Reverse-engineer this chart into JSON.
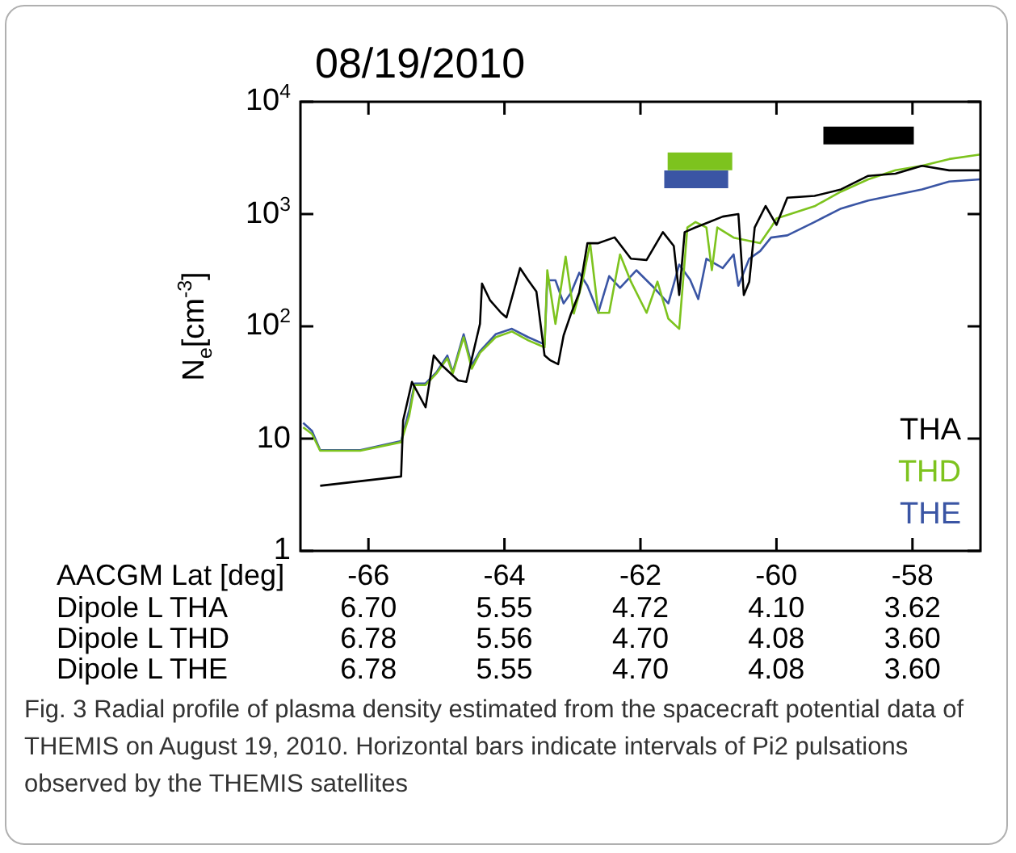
{
  "chart_data": {
    "type": "line",
    "title": "08/19/2010",
    "xlabel": "AACGM Lat [deg]",
    "ylabel": "N$_{e}$[cm$^{-3}$]",
    "xlim": [
      -67,
      -57
    ],
    "xticks": [
      -66,
      -64,
      -62,
      -60,
      -58
    ],
    "ylim": [
      1,
      10000
    ],
    "yticks": [
      {
        "value": 1,
        "label": "1"
      },
      {
        "value": 10,
        "label": "10"
      },
      {
        "value": 100,
        "label": "10$^{2}$"
      },
      {
        "value": 1000,
        "label": "10$^{3}$"
      },
      {
        "value": 10000,
        "label": "10$^{4}$"
      }
    ],
    "log": "y",
    "grid": false,
    "legend": "bottom right",
    "marker": "none",
    "series": [
      {
        "name": "THA",
        "color": "#000000",
        "x": [
          -66.71,
          -65.52,
          -65.49,
          -65.36,
          -65.16,
          -65.04,
          -64.92,
          -64.68,
          -64.56,
          -64.36,
          -64.33,
          -64.21,
          -64.05,
          -63.97,
          -63.77,
          -63.65,
          -63.53,
          -63.41,
          -63.33,
          -63.21,
          -63.13,
          -63.02,
          -62.9,
          -62.78,
          -62.62,
          -62.38,
          -62.14,
          -61.91,
          -61.67,
          -61.51,
          -61.43,
          -61.35,
          -61.19,
          -61.03,
          -60.79,
          -60.56,
          -60.48,
          -60.4,
          -60.32,
          -60.16,
          -60,
          -59.84,
          -59.44,
          -59.05,
          -58.65,
          -58.25,
          -57.86,
          -57.46,
          -57
        ],
        "values": [
          3.8,
          4.6,
          14.5,
          32,
          19,
          55,
          45,
          33,
          32,
          105,
          240,
          170,
          132,
          120,
          330,
          257,
          204,
          55,
          50,
          46,
          83,
          130,
          200,
          550,
          550,
          620,
          400,
          390,
          690,
          520,
          190,
          690,
          760,
          830,
          950,
          1000,
          190,
          250,
          760,
          1180,
          800,
          1400,
          1450,
          1660,
          2190,
          2290,
          2690,
          2450,
          2450
        ]
      },
      {
        "name": "THD",
        "color": "#7dc31e",
        "x": [
          -66.96,
          -66.83,
          -66.71,
          -66.12,
          -65.52,
          -65.4,
          -65.32,
          -65.16,
          -65,
          -64.84,
          -64.76,
          -64.6,
          -64.48,
          -64.36,
          -64.13,
          -63.89,
          -63.65,
          -63.41,
          -63.37,
          -63.25,
          -63.1,
          -62.98,
          -62.86,
          -62.74,
          -62.62,
          -62.46,
          -62.3,
          -62.14,
          -61.91,
          -61.75,
          -61.59,
          -61.43,
          -61.31,
          -61.19,
          -61.03,
          -60.95,
          -60.87,
          -60.63,
          -60.24,
          -60.08,
          -60,
          -59.44,
          -59.05,
          -58.65,
          -58.25,
          -57.86,
          -57.46,
          -57
        ],
        "values": [
          12.6,
          11,
          7.8,
          7.8,
          9.3,
          16,
          30,
          30,
          38,
          52,
          38,
          80,
          42,
          58,
          80,
          90,
          75,
          65,
          316,
          105,
          417,
          130,
          240,
          550,
          132,
          132,
          437,
          250,
          132,
          250,
          117,
          95,
          760,
          850,
          760,
          316,
          760,
          617,
          550,
          760,
          912,
          1175,
          1585,
          2040,
          2455,
          2690,
          3090,
          3390
        ]
      },
      {
        "name": "THE",
        "color": "#3a55a4",
        "x": [
          -66.96,
          -66.83,
          -66.71,
          -66.12,
          -65.52,
          -65.4,
          -65.32,
          -65.16,
          -65,
          -64.84,
          -64.76,
          -64.6,
          -64.48,
          -64.36,
          -64.13,
          -63.89,
          -63.65,
          -63.41,
          -63.37,
          -63.25,
          -63.13,
          -63.02,
          -62.9,
          -62.78,
          -62.62,
          -62.46,
          -62.3,
          -62.06,
          -61.83,
          -61.59,
          -61.43,
          -61.27,
          -61.15,
          -61.03,
          -60.79,
          -60.63,
          -60.56,
          -60.4,
          -60.24,
          -60.08,
          -59.84,
          -59.44,
          -59.05,
          -58.65,
          -58.25,
          -57.86,
          -57.46,
          -57
        ],
        "values": [
          13.8,
          11.7,
          7.9,
          7.9,
          9.5,
          18,
          31,
          31,
          39,
          55,
          39,
          85,
          45,
          60,
          85,
          95,
          80,
          69,
          257,
          257,
          160,
          200,
          300,
          230,
          132,
          280,
          220,
          316,
          230,
          160,
          355,
          260,
          175,
          400,
          330,
          437,
          230,
          400,
          468,
          617,
          646,
          850,
          1120,
          1320,
          1480,
          1660,
          1950,
          2040
        ]
      },
      {
        "color": "#7dc31e",
        "x": [
          -61.6,
          -60.65
        ],
        "values": [
          2950,
          2950
        ]
      },
      {
        "color": "#3a55a4",
        "x": [
          -61.65,
          -60.71
        ],
        "values": [
          2040,
          2040
        ]
      },
      {
        "color": "#000000",
        "x": [
          -59.31,
          -57.98
        ],
        "values": [
          5000,
          5000
        ]
      }
    ],
    "annotations": [
      "Dipole L THA",
      "6.70",
      "5.55",
      "4.72",
      "4.10",
      "3.62",
      "Dipole L THD",
      "6.78",
      "5.56",
      "4.70",
      "4.08",
      "3.60",
      "Dipole L THE",
      "6.78",
      "5.55",
      "4.70",
      "4.08",
      "3.60",
      "Fig. 3 Radial profile of plasma density estimated from the spacecraft potential data of THEMIS on August 19, 2010. Horizontal bars indicate intervals of Pi2 pulsations observed by the THEMIS satellites"
    ]
  }
}
